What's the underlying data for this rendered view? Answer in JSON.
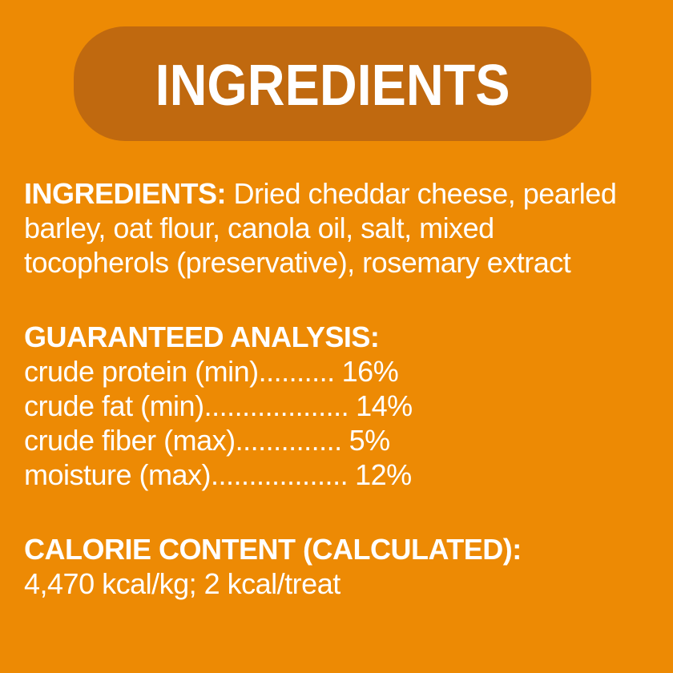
{
  "page": {
    "background_color": "#ED8A04",
    "header_pill_color": "#C0690F",
    "text_color": "#FFFFFF"
  },
  "header": {
    "title": "INGREDIENTS"
  },
  "ingredients": {
    "label": "INGREDIENTS:",
    "text": "Dried cheddar cheese, pearled barley, oat flour, canola oil, salt, mixed tocopherols (preservative), rosemary extract"
  },
  "analysis": {
    "heading": "GUARANTEED ANALYSIS:",
    "rows": [
      {
        "label": "crude protein (min)",
        "leader": "..........",
        "value": "16%"
      },
      {
        "label": "crude fat (min)",
        "leader": "...................",
        "value": "14%"
      },
      {
        "label": "crude fiber (max)",
        "leader": "..............",
        "value": "5%"
      },
      {
        "label": "moisture (max)",
        "leader": "..................",
        "value": "12%"
      }
    ]
  },
  "calories": {
    "heading": "CALORIE CONTENT (CALCULATED):",
    "value": "4,470 kcal/kg; 2 kcal/treat"
  }
}
